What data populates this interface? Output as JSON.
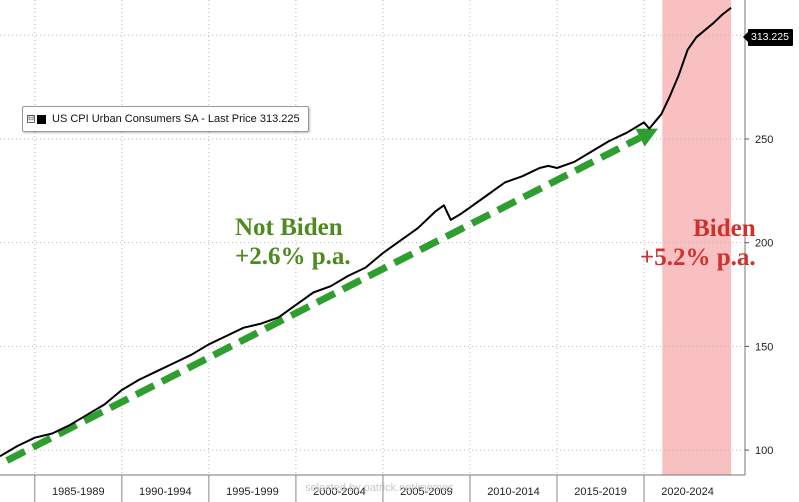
{
  "chart_data": {
    "type": "line",
    "series": [
      {
        "name": "US CPI Urban Consumers SA - Last Price 313.225",
        "x": [
          1983.0,
          1984.0,
          1985.0,
          1986.0,
          1987.0,
          1988.0,
          1989.0,
          1990.0,
          1991.0,
          1992.0,
          1993.0,
          1994.0,
          1995.0,
          1996.0,
          1997.0,
          1998.0,
          1999.0,
          2000.0,
          2001.0,
          2002.0,
          2003.0,
          2004.0,
          2005.0,
          2006.0,
          2007.0,
          2008.0,
          2008.5,
          2008.9,
          2009.5,
          2010.0,
          2011.0,
          2012.0,
          2013.0,
          2014.0,
          2014.5,
          2015.0,
          2016.0,
          2017.0,
          2018.0,
          2019.0,
          2020.0,
          2020.3,
          2020.7,
          2021.0,
          2021.5,
          2022.0,
          2022.5,
          2023.0,
          2024.0,
          2024.5,
          2025.0
        ],
        "values": [
          97,
          102,
          106,
          108,
          112,
          117,
          122,
          129,
          134,
          138,
          142,
          146,
          151,
          155,
          159,
          161,
          164,
          170,
          176,
          179,
          184,
          188,
          195,
          201,
          207,
          215,
          218,
          211,
          214,
          217,
          223,
          229,
          232,
          236,
          237,
          236,
          239,
          244,
          249,
          253,
          258,
          255,
          259,
          262,
          271,
          281,
          293,
          299,
          306,
          310,
          313.225
        ]
      }
    ],
    "ylim": [
      88,
      317
    ],
    "xlim": [
      1983.0,
      2025.8
    ],
    "yticks": [
      100,
      150,
      200,
      250,
      300
    ],
    "x_period_labels": [
      "1985-1989",
      "1990-1994",
      "1995-1999",
      "2000-2004",
      "2005-2009",
      "2010-2014",
      "2015-2019",
      "2020-2024"
    ],
    "x_period_starts": [
      1985,
      1990,
      1995,
      2000,
      2005,
      2010,
      2015,
      2020
    ],
    "highlight_band": {
      "x_start": 2021.05,
      "x_end": 2025.0,
      "color": "#f8c0c0"
    },
    "trend_arrow": {
      "x": [
        1983.4,
        2020.8
      ],
      "values": [
        95,
        255
      ],
      "color": "#2e9e2e"
    },
    "last_price_label": "313.225",
    "y_axis_side": "right",
    "grid": "dotted",
    "legend": "top-left"
  },
  "annotations": {
    "not_biden_line1": "Not Biden",
    "not_biden_line2": "+2.6% p.a.",
    "biden_line1": "Biden",
    "biden_line2": "+5.2% p.a.",
    "legend_label": "US CPI Urban Consumers SA - Last Price 313.225",
    "legend_toggle": "⊟"
  },
  "watermark": "selected by patrick.net/memes"
}
